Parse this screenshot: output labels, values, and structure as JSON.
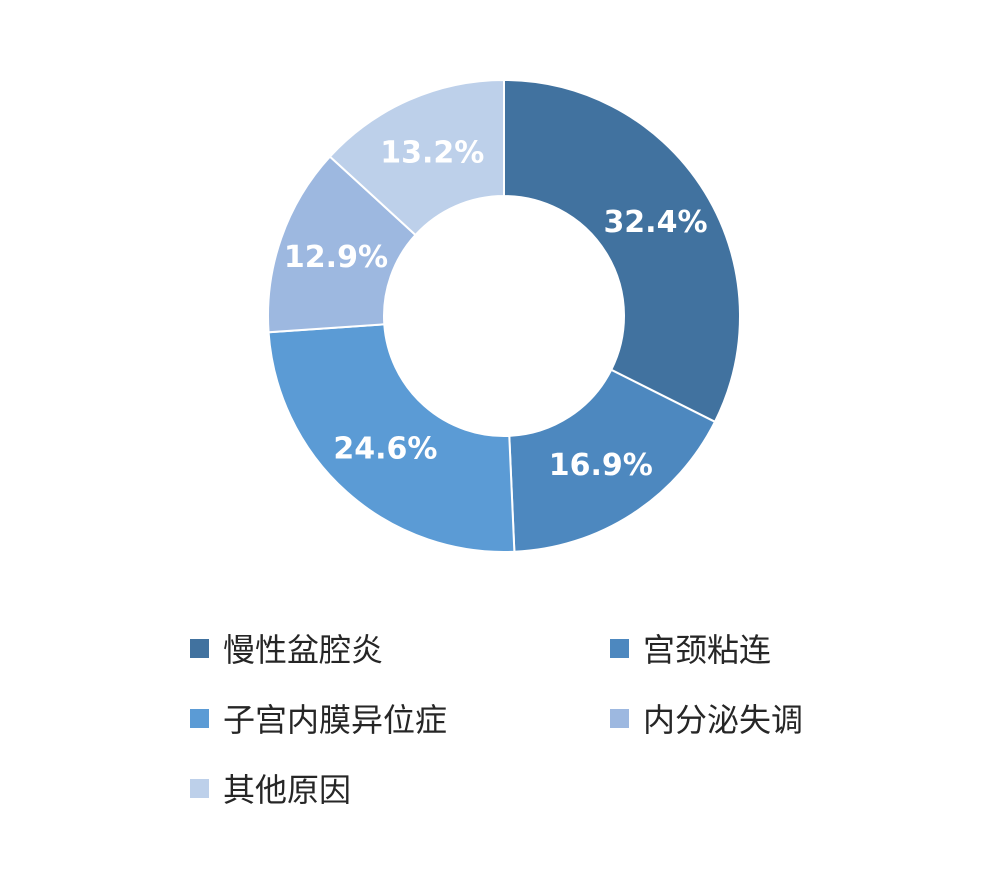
{
  "chart_data": {
    "type": "pie",
    "donut": true,
    "title": "",
    "legend_position": "bottom",
    "slices": [
      {
        "name": "慢性盆腔炎",
        "value": 32.4,
        "label": "32.4%",
        "color": "#41729F"
      },
      {
        "name": "宫颈粘连",
        "value": 16.9,
        "label": "16.9%",
        "color": "#4D88BF"
      },
      {
        "name": "子宫内膜异位症",
        "value": 24.6,
        "label": "24.6%",
        "color": "#5B9BD5"
      },
      {
        "name": "内分泌失调",
        "value": 12.9,
        "label": "12.9%",
        "color": "#9DB8E0"
      },
      {
        "name": "其他原因",
        "value": 13.2,
        "label": "13.2%",
        "color": "#BDD0EA"
      }
    ]
  }
}
